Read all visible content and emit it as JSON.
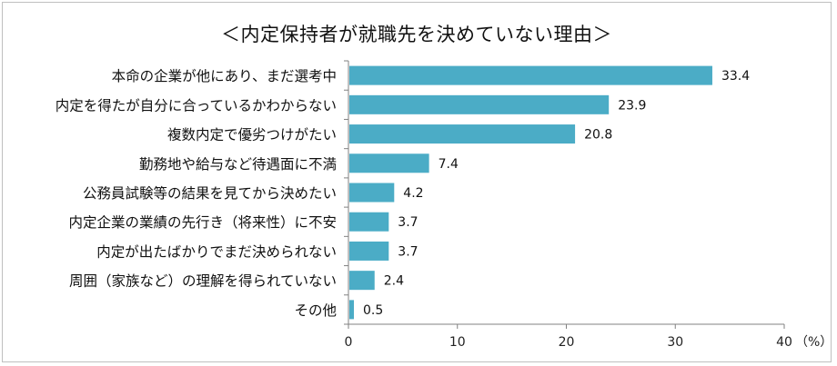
{
  "chart_data": {
    "type": "bar",
    "orientation": "horizontal",
    "title": "＜内定保持者が就職先を決めていない理由＞",
    "categories": [
      "本命の企業が他にあり、まだ選考中",
      "内定を得たが自分に合っているかわからない",
      "複数内定で優劣つけがたい",
      "勤務地や給与など待遇面に不満",
      "公務員試験等の結果を見てから決めたい",
      "内定企業の業績の先行き（将来性）に不安",
      "内定が出たばかりでまだ決められない",
      "周囲（家族など）の理解を得られていない",
      "その他"
    ],
    "values": [
      33.4,
      23.9,
      20.8,
      7.4,
      4.2,
      3.7,
      3.7,
      2.4,
      0.5
    ],
    "value_labels": [
      "33.4",
      "23.9",
      "20.8",
      "7.4",
      "4.2",
      "3.7",
      "3.7",
      "2.4",
      "0.5"
    ],
    "xlim": [
      0,
      40
    ],
    "xticks": [
      0,
      10,
      20,
      30,
      40
    ],
    "xtick_labels": [
      "0",
      "10",
      "20",
      "30",
      "40"
    ],
    "unit_label": "（%）",
    "bar_color": "#4bacc6",
    "grid": false,
    "legend": "none"
  }
}
